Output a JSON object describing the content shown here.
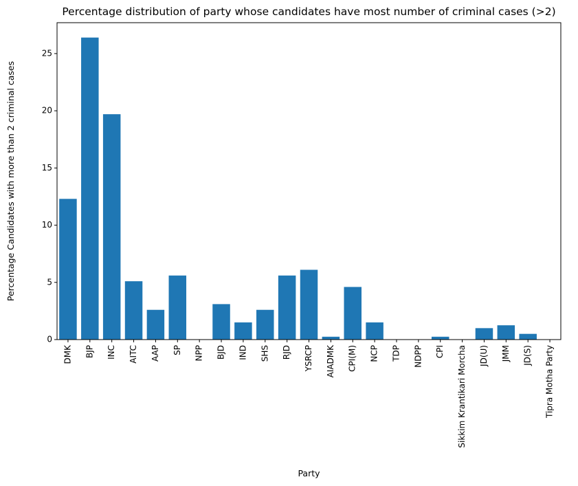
{
  "chart_data": {
    "type": "bar",
    "title": "Percentage distribution of party whose candidates have most number of criminal cases (>2)",
    "xlabel": "Party",
    "ylabel": "Percentage Candidates with more than 2 criminal cases",
    "categories": [
      "DMK",
      "BJP",
      "INC",
      "AITC",
      "AAP",
      "SP",
      "NPP",
      "BJD",
      "IND",
      "SHS",
      "RJD",
      "YSRCP",
      "AIADMK",
      "CPI(M)",
      "NCP",
      "TDP",
      "NDPP",
      "CPI",
      "Sikkim Krantikari Morcha",
      "JD(U)",
      "JMM",
      "JD(S)",
      "Tipra Motha Party"
    ],
    "values": [
      12.3,
      26.4,
      19.7,
      5.1,
      2.6,
      5.6,
      0,
      3.1,
      1.5,
      2.6,
      5.6,
      6.1,
      0.25,
      4.6,
      1.5,
      0,
      0,
      0.25,
      0,
      1.0,
      1.25,
      0.5,
      0
    ],
    "yticks": [
      0,
      5,
      10,
      15,
      20,
      25
    ],
    "ylim": [
      0,
      27.7
    ],
    "grid": false,
    "bar_color": "#1f77b4"
  }
}
